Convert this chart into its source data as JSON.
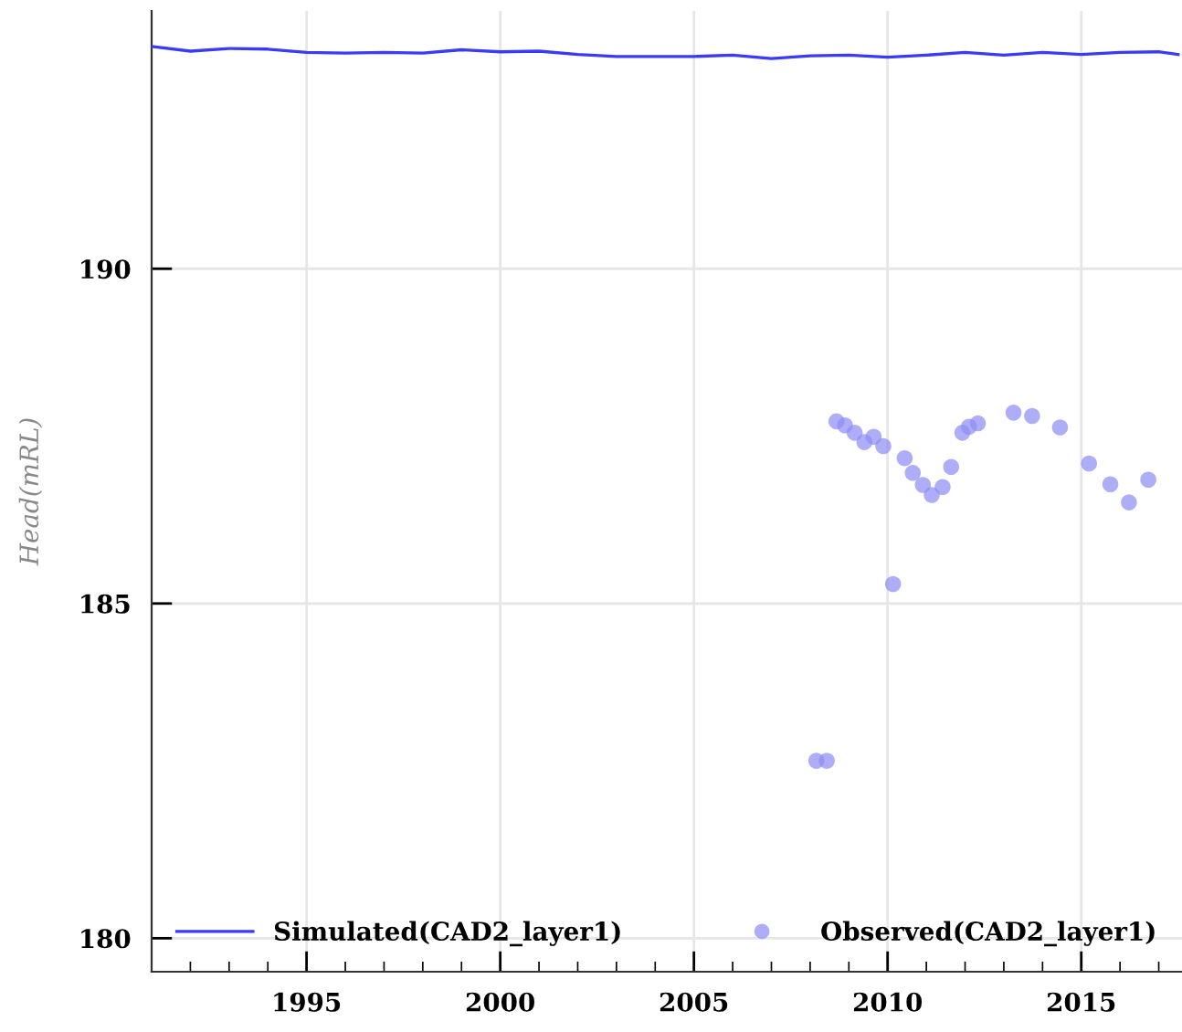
{
  "chart_data": {
    "type": "line",
    "ylabel": "Head(mRL)",
    "xlim": [
      1991,
      2017.6
    ],
    "xticks": [
      1995,
      2000,
      2005,
      2010,
      2015
    ],
    "ylim": [
      179.5,
      193.85
    ],
    "yticks": [
      180,
      185,
      190
    ],
    "grid": true,
    "legend": "bottom",
    "series": [
      {
        "name": "Simulated(CAD2_layer1)",
        "color": "#3b3bf5",
        "marker": "none",
        "line_style": "solid",
        "x": [
          1991,
          1992,
          1993,
          1994,
          1995,
          1996,
          1997,
          1998,
          1999,
          2000,
          2001,
          2002,
          2003,
          2004,
          2005,
          2006,
          2007,
          2008,
          2009,
          2010,
          2011,
          2012,
          2013,
          2014,
          2015,
          2016,
          2017,
          2017.5
        ],
        "values": [
          193.32,
          193.25,
          193.29,
          193.28,
          193.23,
          193.22,
          193.23,
          193.22,
          193.27,
          193.24,
          193.25,
          193.2,
          193.17,
          193.17,
          193.17,
          193.19,
          193.14,
          193.18,
          193.19,
          193.16,
          193.19,
          193.23,
          193.19,
          193.23,
          193.2,
          193.23,
          193.24,
          193.2
        ]
      },
      {
        "name": "Observed(CAD2_layer1)",
        "type": "scatter",
        "color": "#8c8cf5",
        "marker": "circle",
        "x": [
          2008.16,
          2008.43,
          2008.68,
          2008.9,
          2009.15,
          2009.4,
          2009.64,
          2009.89,
          2010.14,
          2010.44,
          2010.65,
          2010.91,
          2011.14,
          2011.42,
          2011.64,
          2011.93,
          2012.1,
          2012.33,
          2013.25,
          2013.73,
          2014.45,
          2015.2,
          2015.75,
          2016.23,
          2016.73
        ],
        "values": [
          182.65,
          182.65,
          187.72,
          187.66,
          187.55,
          187.41,
          187.49,
          187.35,
          185.29,
          187.17,
          186.95,
          186.77,
          186.62,
          186.74,
          187.04,
          187.55,
          187.64,
          187.69,
          187.85,
          187.8,
          187.63,
          187.09,
          186.78,
          186.51,
          186.85
        ]
      }
    ]
  }
}
